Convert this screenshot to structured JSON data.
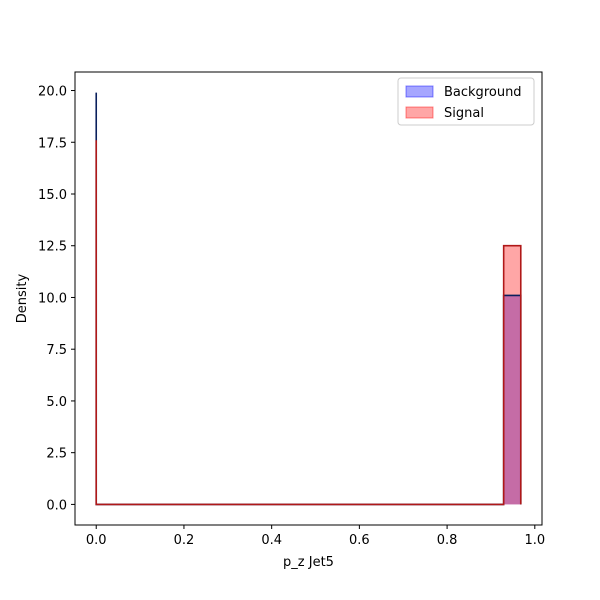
{
  "chart_data": {
    "type": "histogram",
    "title": "",
    "xlabel": "p_z Jet5",
    "ylabel": "Density",
    "xlim": [
      -0.0484,
      1.0164
    ],
    "ylim": [
      -0.995,
      20.895
    ],
    "xticks": [
      {
        "value": 0.0,
        "label": "0.0"
      },
      {
        "value": 0.2,
        "label": "0.2"
      },
      {
        "value": 0.4,
        "label": "0.4"
      },
      {
        "value": 0.6,
        "label": "0.6"
      },
      {
        "value": 0.8,
        "label": "0.8"
      },
      {
        "value": 1.0,
        "label": "1.0"
      }
    ],
    "yticks": [
      {
        "value": 0.0,
        "label": "0.0"
      },
      {
        "value": 2.5,
        "label": "2.5"
      },
      {
        "value": 5.0,
        "label": "5.0"
      },
      {
        "value": 7.5,
        "label": "7.5"
      },
      {
        "value": 10.0,
        "label": "10.0"
      },
      {
        "value": 12.5,
        "label": "12.5"
      },
      {
        "value": 15.0,
        "label": "15.0"
      },
      {
        "value": 17.5,
        "label": "17.5"
      },
      {
        "value": 20.0,
        "label": "20.0"
      }
    ],
    "grid": false,
    "legend_position": "top-right",
    "series": [
      {
        "name": "Background",
        "fill_color": "#0000ff",
        "fill_opacity": 0.35,
        "edge_color": "#0a1f5c",
        "bins": [
          {
            "x0": 0.0,
            "x1": 0.0,
            "value": 19.9
          },
          {
            "x0": 0.0,
            "x1": 0.929,
            "value": 0.0
          },
          {
            "x0": 0.929,
            "x1": 0.968,
            "value": 10.1
          }
        ]
      },
      {
        "name": "Signal",
        "fill_color": "#ff0000",
        "fill_opacity": 0.35,
        "edge_color": "#b01818",
        "bins": [
          {
            "x0": 0.0,
            "x1": 0.0,
            "value": 17.6
          },
          {
            "x0": 0.0,
            "x1": 0.929,
            "value": 0.0
          },
          {
            "x0": 0.929,
            "x1": 0.968,
            "value": 12.5
          }
        ]
      }
    ]
  }
}
